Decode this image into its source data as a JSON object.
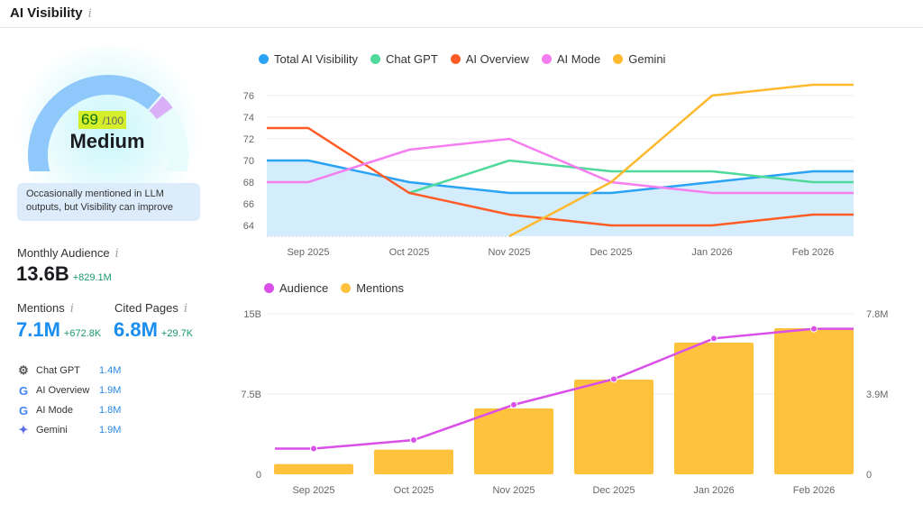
{
  "header": {
    "title": "AI Visibility"
  },
  "score": {
    "value": "69",
    "max": "/100",
    "fraction": 0.69,
    "level": "Medium",
    "note": "Occasionally mentioned in LLM outputs, but Visibility can improve"
  },
  "audience": {
    "label": "Monthly Audience",
    "value": "13.6B",
    "delta": "+829.1M"
  },
  "mentions": {
    "label": "Mentions",
    "value": "7.1M",
    "delta": "+672.8K"
  },
  "cited": {
    "label": "Cited Pages",
    "value": "6.8M",
    "delta": "+29.7K"
  },
  "sources": [
    {
      "name": "Chat GPT",
      "value": "1.4M",
      "icon": "chatgpt-icon"
    },
    {
      "name": "AI Overview",
      "value": "1.9M",
      "icon": "google-icon"
    },
    {
      "name": "AI Mode",
      "value": "1.8M",
      "icon": "google-icon"
    },
    {
      "name": "Gemini",
      "value": "1.9M",
      "icon": "gemini-icon"
    }
  ],
  "chart_data": [
    {
      "type": "line",
      "categories": [
        "Sep 2025",
        "Oct 2025",
        "Nov 2025",
        "Dec 2025",
        "Jan 2026",
        "Feb 2026"
      ],
      "ylim": [
        63,
        77
      ],
      "yticks": [
        64,
        66,
        68,
        70,
        72,
        74,
        76
      ],
      "legend": "top-left",
      "series": [
        {
          "name": "Total AI Visibility",
          "color": "#2aa3f5",
          "values": [
            70,
            68,
            67,
            67,
            68,
            69
          ],
          "area": true
        },
        {
          "name": "Chat GPT",
          "color": "#4fd99a",
          "values": [
            null,
            67,
            70,
            69,
            69,
            68
          ]
        },
        {
          "name": "AI Overview",
          "color": "#ff5c26",
          "values": [
            73,
            67,
            65,
            64,
            64,
            65
          ]
        },
        {
          "name": "AI Mode",
          "color": "#f57ef0",
          "values": [
            68,
            71,
            72,
            68,
            67,
            67
          ]
        },
        {
          "name": "Gemini",
          "color": "#ffb92e",
          "values": [
            null,
            null,
            63,
            68,
            76,
            77
          ]
        }
      ]
    },
    {
      "type": "bar",
      "categories": [
        "Sep 2025",
        "Oct 2025",
        "Nov 2025",
        "Dec 2025",
        "Jan 2026",
        "Feb 2026"
      ],
      "legend": "top-left",
      "left_axis": {
        "ticks": [
          "0",
          "7.5B",
          "15B"
        ],
        "range": [
          0,
          15
        ]
      },
      "right_axis": {
        "ticks": [
          "0",
          "3.9M",
          "7.8M"
        ],
        "range": [
          0,
          7.8
        ]
      },
      "series": [
        {
          "name": "Audience",
          "type": "line",
          "color": "#d94fe8",
          "unit": "B",
          "values": [
            2.4,
            3.2,
            6.5,
            8.9,
            12.7,
            13.6
          ]
        },
        {
          "name": "Mentions",
          "type": "bar",
          "color": "#ffc23d",
          "unit": "M",
          "values": [
            0.5,
            1.2,
            3.2,
            4.6,
            6.4,
            7.1
          ]
        }
      ]
    }
  ]
}
